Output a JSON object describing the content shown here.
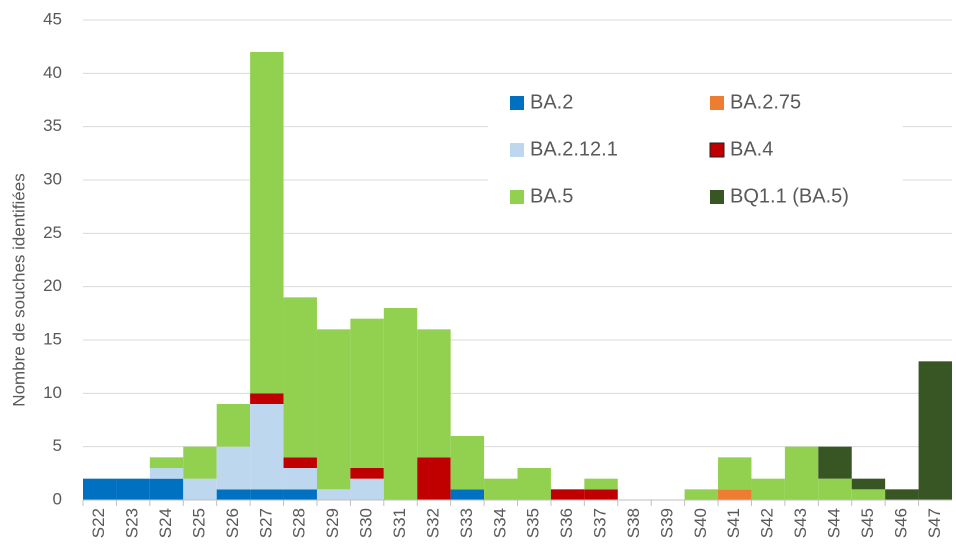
{
  "chart_data": {
    "type": "stacked_bar",
    "ylabel": "Nombre de souches identifiées",
    "categories": [
      "S22",
      "S23",
      "S24",
      "S25",
      "S26",
      "S27",
      "S28",
      "S29",
      "S30",
      "S31",
      "S32",
      "S33",
      "S34",
      "S35",
      "S36",
      "S37",
      "S38",
      "S39",
      "S40",
      "S41",
      "S42",
      "S43",
      "S44",
      "S45",
      "S46",
      "S47"
    ],
    "series": [
      {
        "name": "BA.2",
        "color": "#0070c0",
        "values": [
          2,
          2,
          2,
          0,
          1,
          1,
          1,
          0,
          0,
          0,
          0,
          1,
          0,
          0,
          0,
          0,
          0,
          0,
          0,
          0,
          0,
          0,
          0,
          0,
          0,
          0
        ]
      },
      {
        "name": "BA.2.75",
        "color": "#ed7d31",
        "values": [
          0,
          0,
          0,
          0,
          0,
          0,
          0,
          0,
          0,
          0,
          0,
          0,
          0,
          0,
          0,
          0,
          0,
          0,
          0,
          1,
          0,
          0,
          0,
          0,
          0,
          0
        ]
      },
      {
        "name": "BA.2.12.1",
        "color": "#bdd7ee",
        "values": [
          0,
          0,
          1,
          2,
          4,
          8,
          2,
          1,
          2,
          0,
          0,
          0,
          0,
          0,
          0,
          0,
          0,
          0,
          0,
          0,
          0,
          0,
          0,
          0,
          0,
          0
        ]
      },
      {
        "name": "BA.4",
        "color": "#c00000",
        "values": [
          0,
          0,
          0,
          0,
          0,
          1,
          1,
          0,
          1,
          0,
          4,
          0,
          0,
          0,
          1,
          1,
          0,
          0,
          0,
          0,
          0,
          0,
          0,
          0,
          0,
          0
        ]
      },
      {
        "name": "BA.5",
        "color": "#92d050",
        "values": [
          0,
          0,
          1,
          3,
          4,
          32,
          15,
          15,
          14,
          18,
          12,
          5,
          2,
          3,
          0,
          1,
          0,
          0,
          1,
          3,
          2,
          5,
          2,
          1,
          0,
          0
        ]
      },
      {
        "name": "BQ1.1 (BA.5)",
        "color": "#375623",
        "values": [
          0,
          0,
          0,
          0,
          0,
          0,
          0,
          0,
          0,
          0,
          0,
          0,
          0,
          0,
          0,
          0,
          0,
          0,
          0,
          0,
          0,
          0,
          3,
          1,
          1,
          13
        ]
      }
    ],
    "ylim": [
      0,
      45
    ],
    "yticks": [
      0,
      5,
      10,
      15,
      20,
      25,
      30,
      35,
      40,
      45
    ],
    "grid": true
  }
}
